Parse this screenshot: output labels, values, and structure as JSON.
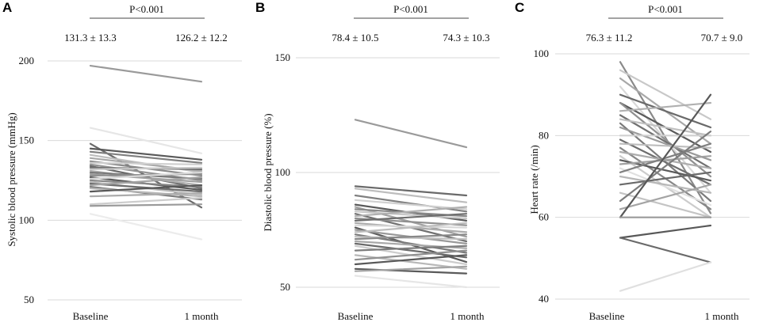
{
  "chart_data": [
    {
      "panel": "A",
      "type": "line",
      "ylabel": "Systolic blood pressure (mmHg)",
      "categories": [
        "Baseline",
        "1 month"
      ],
      "ylim": [
        50,
        200
      ],
      "yticks": [
        50,
        100,
        150,
        200
      ],
      "pvalue": "P<0.001",
      "stats": [
        "131.3 ± 13.3",
        "126.2 ± 12.2"
      ],
      "series": [
        {
          "values": [
            197,
            187
          ],
          "shade": "#9a9a9a"
        },
        {
          "values": [
            158,
            142
          ],
          "shade": "#e6e6e6"
        },
        {
          "values": [
            148,
            108
          ],
          "shade": "#6a6a6a"
        },
        {
          "values": [
            145,
            138
          ],
          "shade": "#5a5a5a"
        },
        {
          "values": [
            143,
            136
          ],
          "shade": "#808080"
        },
        {
          "values": [
            141,
            130
          ],
          "shade": "#bdbdbd"
        },
        {
          "values": [
            139,
            131
          ],
          "shade": "#a8a8a8"
        },
        {
          "values": [
            137,
            128
          ],
          "shade": "#8a8a8a"
        },
        {
          "values": [
            136,
            135
          ],
          "shade": "#d0d0d0"
        },
        {
          "values": [
            135,
            125
          ],
          "shade": "#959595"
        },
        {
          "values": [
            134,
            120
          ],
          "shade": "#6a6a6a"
        },
        {
          "values": [
            133,
            132
          ],
          "shade": "#707070"
        },
        {
          "values": [
            132,
            133
          ],
          "shade": "#c8c8c8"
        },
        {
          "values": [
            131,
            122
          ],
          "shade": "#b0b0b0"
        },
        {
          "values": [
            130,
            126
          ],
          "shade": "#7a7a7a"
        },
        {
          "values": [
            129,
            124
          ],
          "shade": "#a0a0a0"
        },
        {
          "values": [
            128,
            129
          ],
          "shade": "#909090"
        },
        {
          "values": [
            127,
            119
          ],
          "shade": "#5a5a5a"
        },
        {
          "values": [
            126,
            130
          ],
          "shade": "#d8d8d8"
        },
        {
          "values": [
            125,
            121
          ],
          "shade": "#888888"
        },
        {
          "values": [
            124,
            116
          ],
          "shade": "#c0c0c0"
        },
        {
          "values": [
            123,
            118
          ],
          "shade": "#6e6e6e"
        },
        {
          "values": [
            122,
            127
          ],
          "shade": "#a4a4a4"
        },
        {
          "values": [
            121,
            113
          ],
          "shade": "#7c7c7c"
        },
        {
          "values": [
            120,
            115
          ],
          "shade": "#b8b8b8"
        },
        {
          "values": [
            118,
            122
          ],
          "shade": "#585858"
        },
        {
          "values": [
            115,
            117
          ],
          "shade": "#acacac"
        },
        {
          "values": [
            110,
            114
          ],
          "shade": "#cccccc"
        },
        {
          "values": [
            109,
            110
          ],
          "shade": "#9a9a9a"
        },
        {
          "values": [
            104,
            88
          ],
          "shade": "#ececec"
        }
      ]
    },
    {
      "panel": "B",
      "type": "line",
      "ylabel": "Diastolic blood pressure (%)",
      "categories": [
        "Baseline",
        "1 month"
      ],
      "ylim": [
        50,
        150
      ],
      "yticks": [
        50,
        100,
        150
      ],
      "pvalue": "P<0.001",
      "stats": [
        "78.4 ± 10.5",
        "74.3 ± 10.3"
      ],
      "series": [
        {
          "values": [
            123,
            111
          ],
          "shade": "#9a9a9a"
        },
        {
          "values": [
            94,
            90
          ],
          "shade": "#6a6a6a"
        },
        {
          "values": [
            93,
            87
          ],
          "shade": "#bdbdbd"
        },
        {
          "values": [
            90,
            83
          ],
          "shade": "#808080"
        },
        {
          "values": [
            88,
            84
          ],
          "shade": "#d0d0d0"
        },
        {
          "values": [
            86,
            79
          ],
          "shade": "#5a5a5a"
        },
        {
          "values": [
            85,
            72
          ],
          "shade": "#a0a0a0"
        },
        {
          "values": [
            84,
            81
          ],
          "shade": "#8a8a8a"
        },
        {
          "values": [
            83,
            80
          ],
          "shade": "#c8c8c8"
        },
        {
          "values": [
            82,
            70
          ],
          "shade": "#707070"
        },
        {
          "values": [
            81,
            85
          ],
          "shade": "#b0b0b0"
        },
        {
          "values": [
            80,
            77
          ],
          "shade": "#909090"
        },
        {
          "values": [
            79,
            82
          ],
          "shade": "#6e6e6e"
        },
        {
          "values": [
            78,
            74
          ],
          "shade": "#acacac"
        },
        {
          "values": [
            77,
            76
          ],
          "shade": "#d8d8d8"
        },
        {
          "values": [
            76,
            61
          ],
          "shade": "#5a5a5a"
        },
        {
          "values": [
            75,
            69
          ],
          "shade": "#9a9a9a"
        },
        {
          "values": [
            74,
            78
          ],
          "shade": "#bdbdbd"
        },
        {
          "values": [
            73,
            65
          ],
          "shade": "#7a7a7a"
        },
        {
          "values": [
            72,
            71
          ],
          "shade": "#c0c0c0"
        },
        {
          "values": [
            71,
            73
          ],
          "shade": "#888888"
        },
        {
          "values": [
            70,
            67
          ],
          "shade": "#a8a8a8"
        },
        {
          "values": [
            69,
            63
          ],
          "shade": "#6a6a6a"
        },
        {
          "values": [
            68,
            60
          ],
          "shade": "#cccccc"
        },
        {
          "values": [
            66,
            68
          ],
          "shade": "#7c7c7c"
        },
        {
          "values": [
            64,
            58
          ],
          "shade": "#b8b8b8"
        },
        {
          "values": [
            62,
            66
          ],
          "shade": "#909090"
        },
        {
          "values": [
            60,
            64
          ],
          "shade": "#585858"
        },
        {
          "values": [
            58,
            56
          ],
          "shade": "#5a5a5a"
        },
        {
          "values": [
            57,
            59
          ],
          "shade": "#a4a4a4"
        },
        {
          "values": [
            55,
            50
          ],
          "shade": "#e6e6e6"
        }
      ]
    },
    {
      "panel": "C",
      "type": "line",
      "ylabel": "Heart rate (/min)",
      "categories": [
        "Baseline",
        "1 month"
      ],
      "ylim": [
        40,
        100
      ],
      "yticks": [
        40,
        60,
        80,
        100
      ],
      "pvalue": "P<0.001",
      "stats": [
        "76.3 ± 11.2",
        "70.7 ± 9.0"
      ],
      "series": [
        {
          "values": [
            98,
            61
          ],
          "shade": "#8a8a8a"
        },
        {
          "values": [
            96,
            84
          ],
          "shade": "#c8c8c8"
        },
        {
          "values": [
            94,
            78
          ],
          "shade": "#a8a8a8"
        },
        {
          "values": [
            92,
            66
          ],
          "shade": "#d8d8d8"
        },
        {
          "values": [
            90,
            82
          ],
          "shade": "#6a6a6a"
        },
        {
          "values": [
            88,
            76
          ],
          "shade": "#5a5a5a"
        },
        {
          "values": [
            88,
            70
          ],
          "shade": "#909090"
        },
        {
          "values": [
            86,
            88
          ],
          "shade": "#b0b0b0"
        },
        {
          "values": [
            85,
            72
          ],
          "shade": "#707070"
        },
        {
          "values": [
            84,
            80
          ],
          "shade": "#c0c0c0"
        },
        {
          "values": [
            83,
            64
          ],
          "shade": "#7a7a7a"
        },
        {
          "values": [
            82,
            74
          ],
          "shade": "#9a9a9a"
        },
        {
          "values": [
            80,
            80
          ],
          "shade": "#d0d0d0"
        },
        {
          "values": [
            79,
            68
          ],
          "shade": "#6e6e6e"
        },
        {
          "values": [
            78,
            77
          ],
          "shade": "#bdbdbd"
        },
        {
          "values": [
            77,
            62
          ],
          "shade": "#888888"
        },
        {
          "values": [
            76,
            72
          ],
          "shade": "#acacac"
        },
        {
          "values": [
            75,
            60
          ],
          "shade": "#cccccc"
        },
        {
          "values": [
            74,
            69
          ],
          "shade": "#5a5a5a"
        },
        {
          "values": [
            73,
            75
          ],
          "shade": "#a0a0a0"
        },
        {
          "values": [
            72,
            63
          ],
          "shade": "#e0e0e0"
        },
        {
          "values": [
            71,
            78
          ],
          "shade": "#808080"
        },
        {
          "values": [
            70,
            66
          ],
          "shade": "#b8b8b8"
        },
        {
          "values": [
            68,
            71
          ],
          "shade": "#6a6a6a"
        },
        {
          "values": [
            66,
            60
          ],
          "shade": "#c4c4c4"
        },
        {
          "values": [
            64,
            81
          ],
          "shade": "#7c7c7c"
        },
        {
          "values": [
            62,
            68
          ],
          "shade": "#a4a4a4"
        },
        {
          "values": [
            60,
            90
          ],
          "shade": "#585858"
        },
        {
          "values": [
            60,
            60
          ],
          "shade": "#9a9a9a"
        },
        {
          "values": [
            55,
            58
          ],
          "shade": "#585858"
        },
        {
          "values": [
            55,
            49
          ],
          "shade": "#6a6a6a"
        },
        {
          "values": [
            42,
            49
          ],
          "shade": "#e0e0e0"
        }
      ]
    }
  ]
}
